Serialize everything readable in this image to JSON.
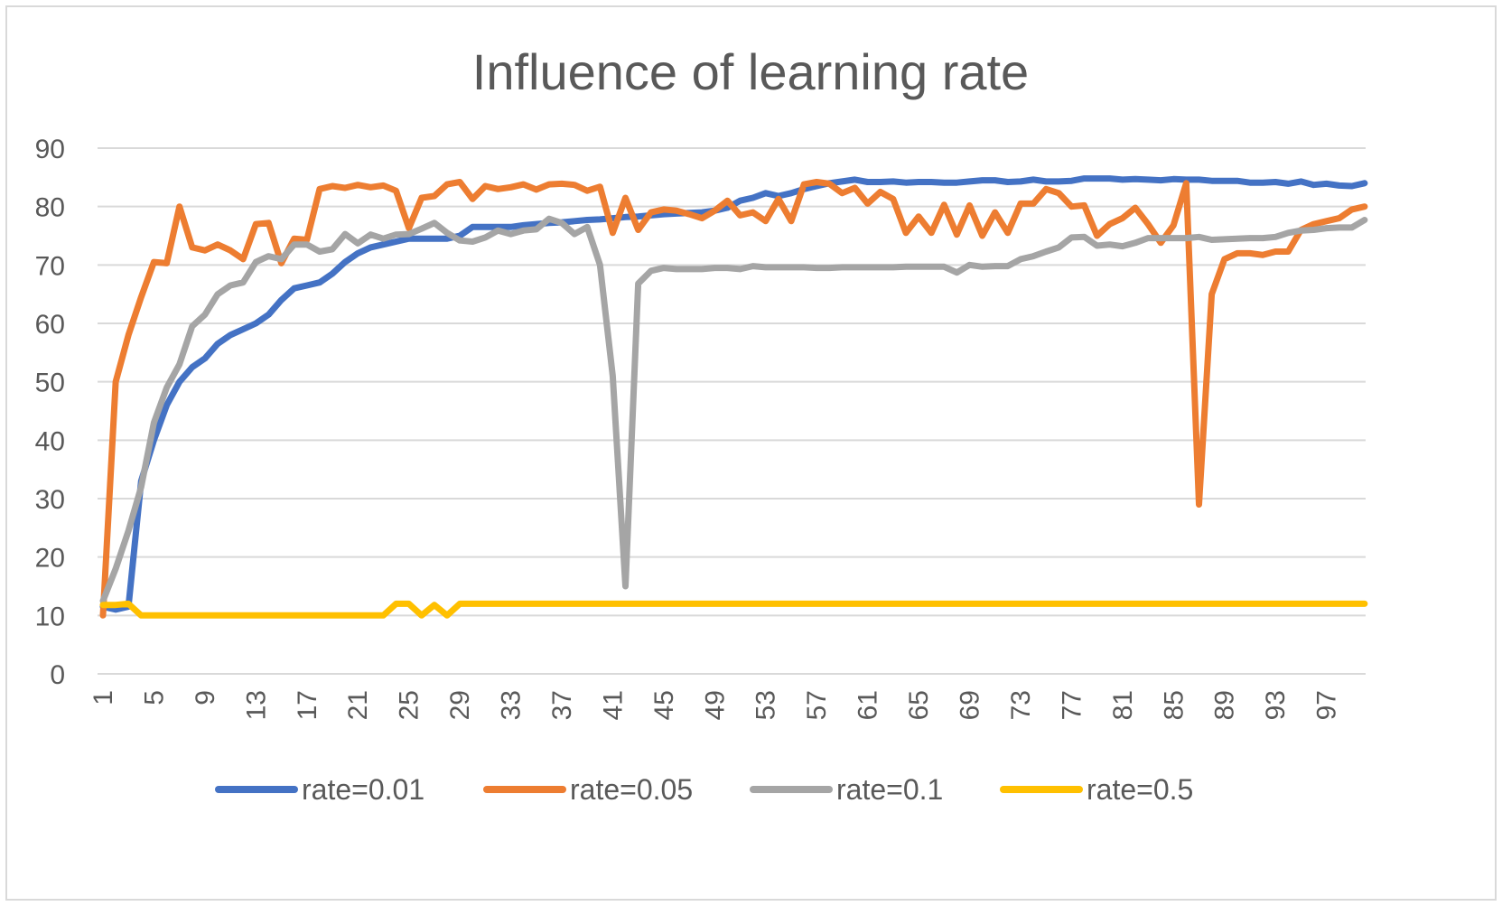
{
  "chart_data": {
    "type": "line",
    "title": "Influence of learning rate",
    "xlabel": "",
    "ylabel": "",
    "ylim": [
      0,
      90
    ],
    "yticks": [
      "0",
      "10",
      "20",
      "30",
      "40",
      "50",
      "60",
      "70",
      "80",
      "90"
    ],
    "xticks": [
      "1",
      "5",
      "9",
      "13",
      "17",
      "21",
      "25",
      "29",
      "33",
      "37",
      "41",
      "45",
      "49",
      "53",
      "57",
      "61",
      "65",
      "69",
      "73",
      "77",
      "81",
      "85",
      "89",
      "93",
      "97"
    ],
    "grid": true,
    "legend_position": "bottom",
    "x": [
      1,
      2,
      3,
      4,
      5,
      6,
      7,
      8,
      9,
      10,
      11,
      12,
      13,
      14,
      15,
      16,
      17,
      18,
      19,
      20,
      21,
      22,
      23,
      24,
      25,
      26,
      27,
      28,
      29,
      30,
      31,
      32,
      33,
      34,
      35,
      36,
      37,
      38,
      39,
      40,
      41,
      42,
      43,
      44,
      45,
      46,
      47,
      48,
      49,
      50,
      51,
      52,
      53,
      54,
      55,
      56,
      57,
      58,
      59,
      60,
      61,
      62,
      63,
      64,
      65,
      66,
      67,
      68,
      69,
      70,
      71,
      72,
      73,
      74,
      75,
      76,
      77,
      78,
      79,
      80,
      81,
      82,
      83,
      84,
      85,
      86,
      87,
      88,
      89,
      90,
      91,
      92,
      93,
      94,
      95,
      96,
      97,
      98,
      99,
      100
    ],
    "series": [
      {
        "name": "rate=0.01",
        "color": "#4472c4",
        "values": [
          11.5,
          11,
          11.5,
          33,
          40,
          46,
          50,
          52.5,
          54,
          56.5,
          58,
          59,
          60,
          61.5,
          64,
          66,
          66.5,
          67,
          68.5,
          70.5,
          72,
          73,
          73.5,
          74,
          74.5,
          74.5,
          74.5,
          74.5,
          75,
          76.5,
          76.5,
          76.5,
          76.5,
          76.8,
          77,
          77.2,
          77.3,
          77.5,
          77.7,
          77.8,
          78,
          78.2,
          78.3,
          78.5,
          78.7,
          78.8,
          78.9,
          79,
          79.3,
          79.8,
          81,
          81.5,
          82.3,
          81.8,
          82.3,
          83,
          83.5,
          84,
          84.3,
          84.6,
          84.2,
          84.2,
          84.3,
          84.1,
          84.2,
          84.2,
          84.1,
          84.1,
          84.3,
          84.5,
          84.5,
          84.2,
          84.3,
          84.6,
          84.3,
          84.3,
          84.4,
          84.8,
          84.8,
          84.8,
          84.6,
          84.7,
          84.6,
          84.5,
          84.7,
          84.6,
          84.6,
          84.4,
          84.4,
          84.4,
          84.1,
          84.1,
          84.2,
          83.9,
          84.3,
          83.7,
          83.9,
          83.6,
          83.5,
          84
        ]
      },
      {
        "name": "rate=0.05",
        "color": "#ed7d31",
        "values": [
          10,
          50,
          58,
          64.5,
          70.5,
          70.3,
          80,
          73,
          72.5,
          73.5,
          72.5,
          71,
          77,
          77.2,
          70.3,
          74.5,
          74.3,
          83,
          83.5,
          83.2,
          83.7,
          83.3,
          83.6,
          82.7,
          76.3,
          81.5,
          81.8,
          83.8,
          84.2,
          81.3,
          83.5,
          83,
          83.3,
          83.8,
          82.9,
          83.8,
          83.9,
          83.7,
          82.7,
          83.4,
          75.5,
          81.5,
          76,
          79,
          79.5,
          79.3,
          78.7,
          78,
          79.3,
          81,
          78.5,
          79,
          77.5,
          81.3,
          77.5,
          83.8,
          84.2,
          83.9,
          82.3,
          83.2,
          80.5,
          82.5,
          81.3,
          75.5,
          78.3,
          75.5,
          80.3,
          75.2,
          80.2,
          75,
          79,
          75.5,
          80.5,
          80.5,
          83,
          82.3,
          80,
          80.2,
          75,
          77,
          78,
          79.8,
          77,
          73.8,
          76.8,
          84,
          29,
          65,
          71,
          72,
          72,
          71.7,
          72.3,
          72.3,
          76,
          77,
          77.5,
          78,
          79.5,
          80
        ]
      },
      {
        "name": "rate=0.1",
        "color": "#a5a5a5",
        "values": [
          12.5,
          18,
          24.5,
          32,
          43,
          49,
          53,
          59.5,
          61.5,
          65,
          66.5,
          67,
          70.5,
          71.5,
          71,
          73.5,
          73.5,
          72.3,
          72.7,
          75.3,
          73.7,
          75.2,
          74.5,
          75.2,
          75.3,
          76.2,
          77.2,
          75.5,
          74.2,
          74,
          74.7,
          75.9,
          75.3,
          75.9,
          76.1,
          77.9,
          77.2,
          75.3,
          76.5,
          70,
          51,
          15,
          66.8,
          69,
          69.5,
          69.3,
          69.3,
          69.3,
          69.5,
          69.5,
          69.3,
          69.8,
          69.6,
          69.6,
          69.6,
          69.6,
          69.5,
          69.5,
          69.6,
          69.6,
          69.6,
          69.6,
          69.6,
          69.7,
          69.7,
          69.7,
          69.7,
          68.7,
          70,
          69.7,
          69.8,
          69.8,
          71,
          71.5,
          72.3,
          73,
          74.7,
          74.8,
          73.3,
          73.5,
          73.2,
          73.8,
          74.6,
          74.6,
          74.6,
          74.6,
          74.8,
          74.3,
          74.4,
          74.5,
          74.6,
          74.6,
          74.8,
          75.5,
          75.9,
          76,
          76.3,
          76.4,
          76.4,
          77.7
        ]
      },
      {
        "name": "rate=0.5",
        "color": "#ffc000",
        "values": [
          11.8,
          11.8,
          12,
          10,
          10,
          10,
          10,
          10,
          10,
          10,
          10,
          10,
          10,
          10,
          10,
          10,
          10,
          10,
          10,
          10,
          10,
          10,
          10,
          12,
          12,
          10,
          11.8,
          10,
          12,
          12,
          12,
          12,
          12,
          12,
          12,
          12,
          12,
          12,
          12,
          12,
          12,
          12,
          12,
          12,
          12,
          12,
          12,
          12,
          12,
          12,
          12,
          12,
          12,
          12,
          12,
          12,
          12,
          12,
          12,
          12,
          12,
          12,
          12,
          12,
          12,
          12,
          12,
          12,
          12,
          12,
          12,
          12,
          12,
          12,
          12,
          12,
          12,
          12,
          12,
          12,
          12,
          12,
          12,
          12,
          12,
          12,
          12,
          12,
          12,
          12,
          12,
          12,
          12,
          12,
          12,
          12,
          12,
          12,
          12,
          12
        ]
      }
    ]
  }
}
